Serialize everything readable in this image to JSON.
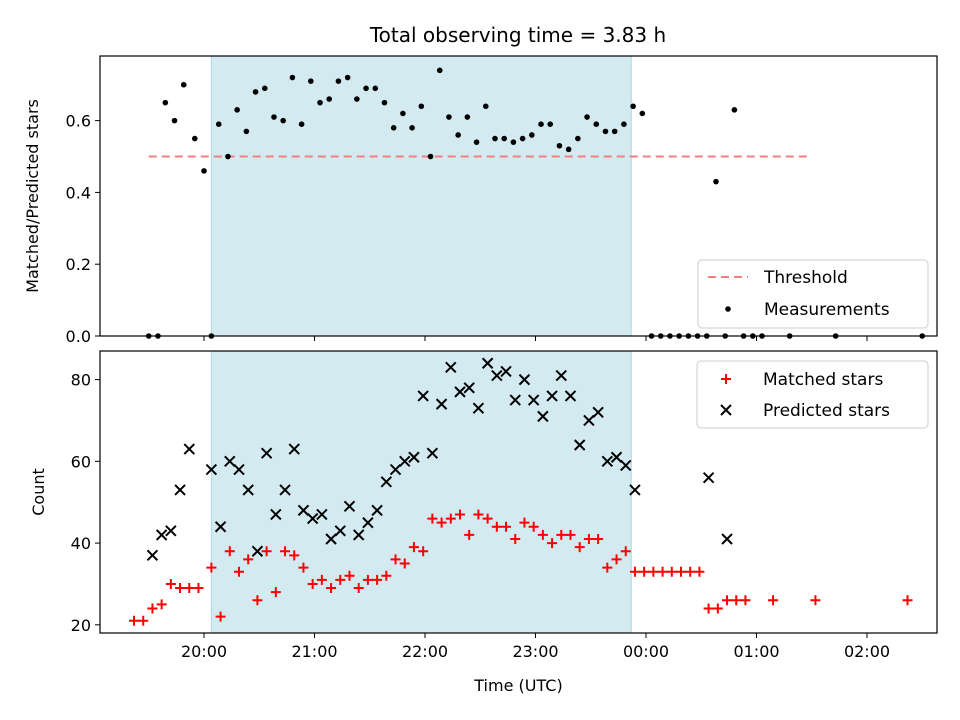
{
  "figure": {
    "title": "Total observing time = 3.83 h"
  },
  "colors": {
    "shade": "#d3eaf1",
    "shade_edge": "#add8e6",
    "threshold": "#f08080",
    "matched": "#ff0000",
    "predicted": "#000000",
    "measure": "#000000"
  },
  "chart_data": [
    {
      "type": "scatter",
      "title": "Total observing time = 3.83 h",
      "ylabel": "Matched/Predicted stars",
      "xlabel": "",
      "x_unit": "hours since 19:00 UTC on x-axis clock",
      "ylim": [
        0.0,
        0.78
      ],
      "yticks": [
        0.0,
        0.2,
        0.4,
        0.6
      ],
      "ytick_labels": [
        "0.0",
        "0.2",
        "0.4",
        "0.6"
      ],
      "observing_window": {
        "start": "20:04",
        "end": "23:52"
      },
      "legend": {
        "placement": "bottom-right",
        "entries": [
          "Threshold",
          "Measurements"
        ]
      },
      "series": [
        {
          "name": "Threshold",
          "style": "dashed-line",
          "x": [
            "19:30",
            "01:30"
          ],
          "y": [
            0.5,
            0.5
          ]
        },
        {
          "name": "Measurements",
          "style": "dots",
          "points": [
            [
              "19:30",
              0.0
            ],
            [
              "19:35",
              0.0
            ],
            [
              "19:39",
              0.65
            ],
            [
              "19:44",
              0.6
            ],
            [
              "19:49",
              0.7
            ],
            [
              "19:55",
              0.55
            ],
            [
              "20:00",
              0.46
            ],
            [
              "20:04",
              0.0
            ],
            [
              "20:08",
              0.59
            ],
            [
              "20:13",
              0.5
            ],
            [
              "20:18",
              0.63
            ],
            [
              "20:23",
              0.57
            ],
            [
              "20:28",
              0.68
            ],
            [
              "20:33",
              0.69
            ],
            [
              "20:38",
              0.61
            ],
            [
              "20:43",
              0.6
            ],
            [
              "20:48",
              0.72
            ],
            [
              "20:53",
              0.59
            ],
            [
              "20:58",
              0.71
            ],
            [
              "21:03",
              0.65
            ],
            [
              "21:08",
              0.66
            ],
            [
              "21:13",
              0.71
            ],
            [
              "21:18",
              0.72
            ],
            [
              "21:23",
              0.66
            ],
            [
              "21:28",
              0.69
            ],
            [
              "21:33",
              0.69
            ],
            [
              "21:38",
              0.65
            ],
            [
              "21:43",
              0.58
            ],
            [
              "21:48",
              0.62
            ],
            [
              "21:53",
              0.58
            ],
            [
              "21:58",
              0.64
            ],
            [
              "22:03",
              0.5
            ],
            [
              "22:08",
              0.74
            ],
            [
              "22:13",
              0.61
            ],
            [
              "22:18",
              0.56
            ],
            [
              "22:23",
              0.61
            ],
            [
              "22:28",
              0.54
            ],
            [
              "22:33",
              0.64
            ],
            [
              "22:38",
              0.55
            ],
            [
              "22:43",
              0.55
            ],
            [
              "22:48",
              0.54
            ],
            [
              "22:53",
              0.55
            ],
            [
              "22:58",
              0.56
            ],
            [
              "23:03",
              0.59
            ],
            [
              "23:08",
              0.59
            ],
            [
              "23:13",
              0.53
            ],
            [
              "23:18",
              0.52
            ],
            [
              "23:23",
              0.55
            ],
            [
              "23:28",
              0.61
            ],
            [
              "23:33",
              0.59
            ],
            [
              "23:38",
              0.57
            ],
            [
              "23:43",
              0.57
            ],
            [
              "23:48",
              0.59
            ],
            [
              "23:53",
              0.64
            ],
            [
              "23:58",
              0.62
            ],
            [
              "00:03",
              0.0
            ],
            [
              "00:08",
              0.0
            ],
            [
              "00:13",
              0.0
            ],
            [
              "00:18",
              0.0
            ],
            [
              "00:23",
              0.0
            ],
            [
              "00:28",
              0.0
            ],
            [
              "00:33",
              0.0
            ],
            [
              "00:38",
              0.43
            ],
            [
              "00:43",
              0.0
            ],
            [
              "00:48",
              0.63
            ],
            [
              "00:53",
              0.0
            ],
            [
              "00:58",
              0.0
            ],
            [
              "01:03",
              0.0
            ],
            [
              "01:18",
              0.0
            ],
            [
              "01:43",
              0.0
            ],
            [
              "02:30",
              0.0
            ]
          ]
        }
      ]
    },
    {
      "type": "scatter",
      "title": "",
      "ylabel": "Count",
      "xlabel": "Time (UTC)",
      "ylim": [
        18,
        87
      ],
      "yticks": [
        20,
        40,
        60,
        80
      ],
      "ytick_labels": [
        "20",
        "40",
        "60",
        "80"
      ],
      "xticks": [
        "20:00",
        "21:00",
        "22:00",
        "23:00",
        "00:00",
        "01:00",
        "02:00"
      ],
      "observing_window": {
        "start": "20:04",
        "end": "23:52"
      },
      "legend": {
        "placement": "top-right",
        "entries": [
          "Matched stars",
          "Predicted stars"
        ]
      },
      "series": [
        {
          "name": "Matched stars",
          "marker": "+",
          "points": [
            [
              "19:22",
              21
            ],
            [
              "19:27",
              21
            ],
            [
              "19:32",
              24
            ],
            [
              "19:37",
              25
            ],
            [
              "19:42",
              30
            ],
            [
              "19:47",
              29
            ],
            [
              "19:52",
              29
            ],
            [
              "19:57",
              29
            ],
            [
              "20:04",
              34
            ],
            [
              "20:09",
              22
            ],
            [
              "20:14",
              38
            ],
            [
              "20:19",
              33
            ],
            [
              "20:24",
              36
            ],
            [
              "20:29",
              26
            ],
            [
              "20:34",
              38
            ],
            [
              "20:39",
              28
            ],
            [
              "20:44",
              38
            ],
            [
              "20:49",
              37
            ],
            [
              "20:54",
              34
            ],
            [
              "20:59",
              30
            ],
            [
              "21:04",
              31
            ],
            [
              "21:09",
              29
            ],
            [
              "21:14",
              31
            ],
            [
              "21:19",
              32
            ],
            [
              "21:24",
              29
            ],
            [
              "21:29",
              31
            ],
            [
              "21:34",
              31
            ],
            [
              "21:39",
              32
            ],
            [
              "21:44",
              36
            ],
            [
              "21:49",
              35
            ],
            [
              "21:54",
              39
            ],
            [
              "21:59",
              38
            ],
            [
              "22:04",
              46
            ],
            [
              "22:09",
              45
            ],
            [
              "22:14",
              46
            ],
            [
              "22:19",
              47
            ],
            [
              "22:24",
              42
            ],
            [
              "22:29",
              47
            ],
            [
              "22:34",
              46
            ],
            [
              "22:39",
              44
            ],
            [
              "22:44",
              44
            ],
            [
              "22:49",
              41
            ],
            [
              "22:54",
              45
            ],
            [
              "22:59",
              44
            ],
            [
              "23:04",
              42
            ],
            [
              "23:09",
              40
            ],
            [
              "23:14",
              42
            ],
            [
              "23:19",
              42
            ],
            [
              "23:24",
              39
            ],
            [
              "23:29",
              41
            ],
            [
              "23:34",
              41
            ],
            [
              "23:39",
              34
            ],
            [
              "23:44",
              36
            ],
            [
              "23:49",
              38
            ],
            [
              "23:54",
              33
            ],
            [
              "23:59",
              33
            ],
            [
              "00:04",
              33
            ],
            [
              "00:09",
              33
            ],
            [
              "00:14",
              33
            ],
            [
              "00:19",
              33
            ],
            [
              "00:24",
              33
            ],
            [
              "00:29",
              33
            ],
            [
              "00:34",
              24
            ],
            [
              "00:39",
              24
            ],
            [
              "00:44",
              26
            ],
            [
              "00:49",
              26
            ],
            [
              "00:54",
              26
            ],
            [
              "01:09",
              26
            ],
            [
              "01:32",
              26
            ],
            [
              "02:22",
              26
            ]
          ]
        },
        {
          "name": "Predicted stars",
          "marker": "x",
          "points": [
            [
              "19:32",
              37
            ],
            [
              "19:37",
              42
            ],
            [
              "19:42",
              43
            ],
            [
              "19:47",
              53
            ],
            [
              "19:52",
              63
            ],
            [
              "20:04",
              58
            ],
            [
              "20:09",
              44
            ],
            [
              "20:14",
              60
            ],
            [
              "20:19",
              58
            ],
            [
              "20:24",
              53
            ],
            [
              "20:29",
              38
            ],
            [
              "20:34",
              62
            ],
            [
              "20:39",
              47
            ],
            [
              "20:44",
              53
            ],
            [
              "20:49",
              63
            ],
            [
              "20:54",
              48
            ],
            [
              "20:59",
              46
            ],
            [
              "21:04",
              47
            ],
            [
              "21:09",
              41
            ],
            [
              "21:14",
              43
            ],
            [
              "21:19",
              49
            ],
            [
              "21:24",
              42
            ],
            [
              "21:29",
              45
            ],
            [
              "21:34",
              48
            ],
            [
              "21:39",
              55
            ],
            [
              "21:44",
              58
            ],
            [
              "21:49",
              60
            ],
            [
              "21:54",
              61
            ],
            [
              "21:59",
              76
            ],
            [
              "22:04",
              62
            ],
            [
              "22:09",
              74
            ],
            [
              "22:14",
              83
            ],
            [
              "22:19",
              77
            ],
            [
              "22:24",
              78
            ],
            [
              "22:29",
              73
            ],
            [
              "22:34",
              84
            ],
            [
              "22:39",
              81
            ],
            [
              "22:44",
              82
            ],
            [
              "22:49",
              75
            ],
            [
              "22:54",
              80
            ],
            [
              "22:59",
              75
            ],
            [
              "23:04",
              71
            ],
            [
              "23:09",
              76
            ],
            [
              "23:14",
              81
            ],
            [
              "23:19",
              76
            ],
            [
              "23:24",
              64
            ],
            [
              "23:29",
              70
            ],
            [
              "23:34",
              72
            ],
            [
              "23:39",
              60
            ],
            [
              "23:44",
              61
            ],
            [
              "23:49",
              59
            ],
            [
              "23:54",
              53
            ],
            [
              "00:34",
              56
            ],
            [
              "00:44",
              41
            ]
          ]
        }
      ]
    }
  ]
}
